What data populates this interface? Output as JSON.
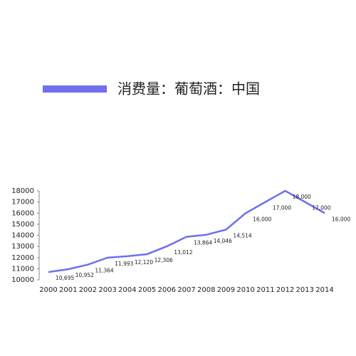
{
  "chart_data": {
    "type": "line",
    "categories": [
      "2000",
      "2001",
      "2002",
      "2003",
      "2004",
      "2005",
      "2006",
      "2007",
      "2008",
      "2009",
      "2010",
      "2011",
      "2012",
      "2013",
      "2014"
    ],
    "series": [
      {
        "name": "消费量：葡萄酒：中国",
        "color": "#6f6ff0",
        "values": [
          10695,
          10952,
          11364,
          11993,
          12120,
          12306,
          13012,
          13864,
          14046,
          14514,
          16000,
          17000,
          18000,
          17000,
          16000
        ],
        "value_labels": [
          "10,695",
          "10,952",
          "11,364",
          "11,993",
          "12,120",
          "12,306",
          "13,012",
          "13,864",
          "14,046",
          "14,514",
          "16,000",
          "17,000",
          "18,000",
          "17,000",
          "16,000"
        ]
      }
    ],
    "ylim": [
      10000,
      18000
    ],
    "yticks": [
      10000,
      11000,
      12000,
      13000,
      14000,
      15000,
      16000,
      17000,
      18000
    ]
  }
}
